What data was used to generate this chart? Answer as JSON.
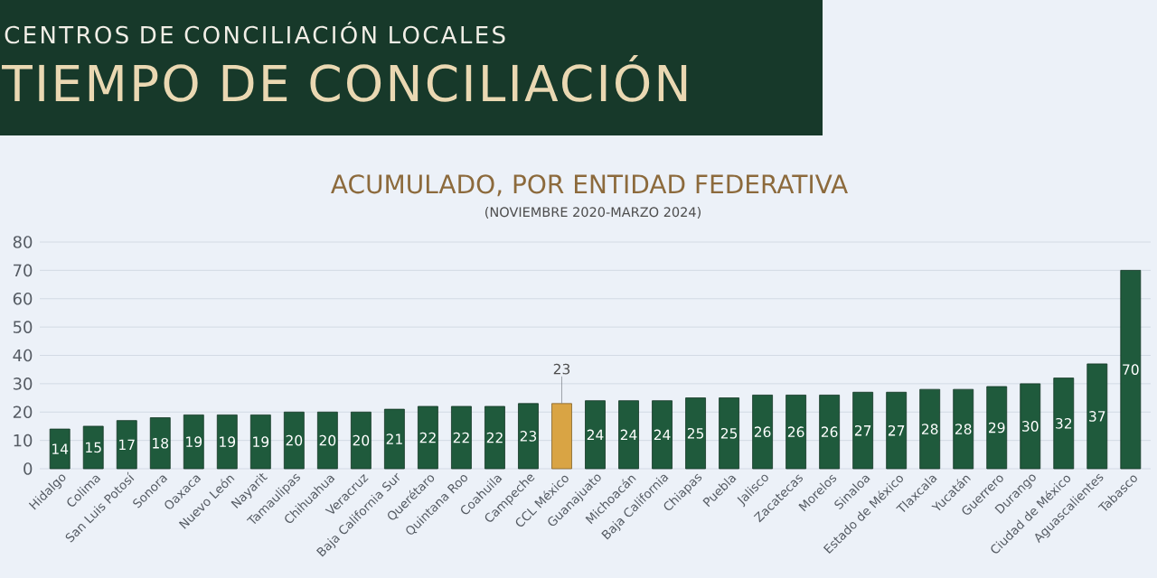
{
  "chart_data": {
    "type": "bar",
    "title": "TIEMPO DE CONCILIACIÓN",
    "subtitle": "ACUMULADO, POR ENTIDAD FEDERATIVA",
    "annotations": [
      "CENTROS DE CONCILIACIÓN LOCALES",
      "(NOVIEMBRE 2020-MARZO 2024)"
    ],
    "categories": [
      "Hidalgo",
      "Colima",
      "San Luis Potosí",
      "Sonora",
      "Oaxaca",
      "Nuevo León",
      "Nayarit",
      "Tamaulipas",
      "Chihuahua",
      "Veracruz",
      "Baja California Sur",
      "Querétaro",
      "Quintana Roo",
      "Coahuila",
      "Campeche",
      "CCL México",
      "Guanajuato",
      "Michoacán",
      "Baja California",
      "Chiapas",
      "Puebla",
      "Jalisco",
      "Zacatecas",
      "Morelos",
      "Sinaloa",
      "Estado de México",
      "Tlaxcala",
      "Yucatán",
      "Guerrero",
      "Durango",
      "Ciudad de México",
      "Aguascalientes",
      "Tabasco"
    ],
    "values": [
      14,
      15,
      17,
      18,
      19,
      19,
      19,
      20,
      20,
      20,
      21,
      22,
      22,
      22,
      23,
      23,
      24,
      24,
      24,
      25,
      25,
      26,
      26,
      26,
      27,
      27,
      28,
      28,
      29,
      30,
      32,
      37,
      70
    ],
    "colors": [
      "#1f5a3c",
      "#1f5a3c",
      "#1f5a3c",
      "#1f5a3c",
      "#1f5a3c",
      "#1f5a3c",
      "#1f5a3c",
      "#1f5a3c",
      "#1f5a3c",
      "#1f5a3c",
      "#1f5a3c",
      "#1f5a3c",
      "#1f5a3c",
      "#1f5a3c",
      "#1f5a3c",
      "#d9a444",
      "#1f5a3c",
      "#1f5a3c",
      "#1f5a3c",
      "#1f5a3c",
      "#1f5a3c",
      "#1f5a3c",
      "#1f5a3c",
      "#1f5a3c",
      "#1f5a3c",
      "#1f5a3c",
      "#1f5a3c",
      "#1f5a3c",
      "#1f5a3c",
      "#1f5a3c",
      "#1f5a3c",
      "#1f5a3c",
      "#1f5a3c"
    ],
    "ylim": [
      0,
      80
    ],
    "yticks": [
      0,
      10,
      20,
      30,
      40,
      50,
      60,
      70,
      80
    ],
    "grid": "y",
    "data_labels": true
  }
}
